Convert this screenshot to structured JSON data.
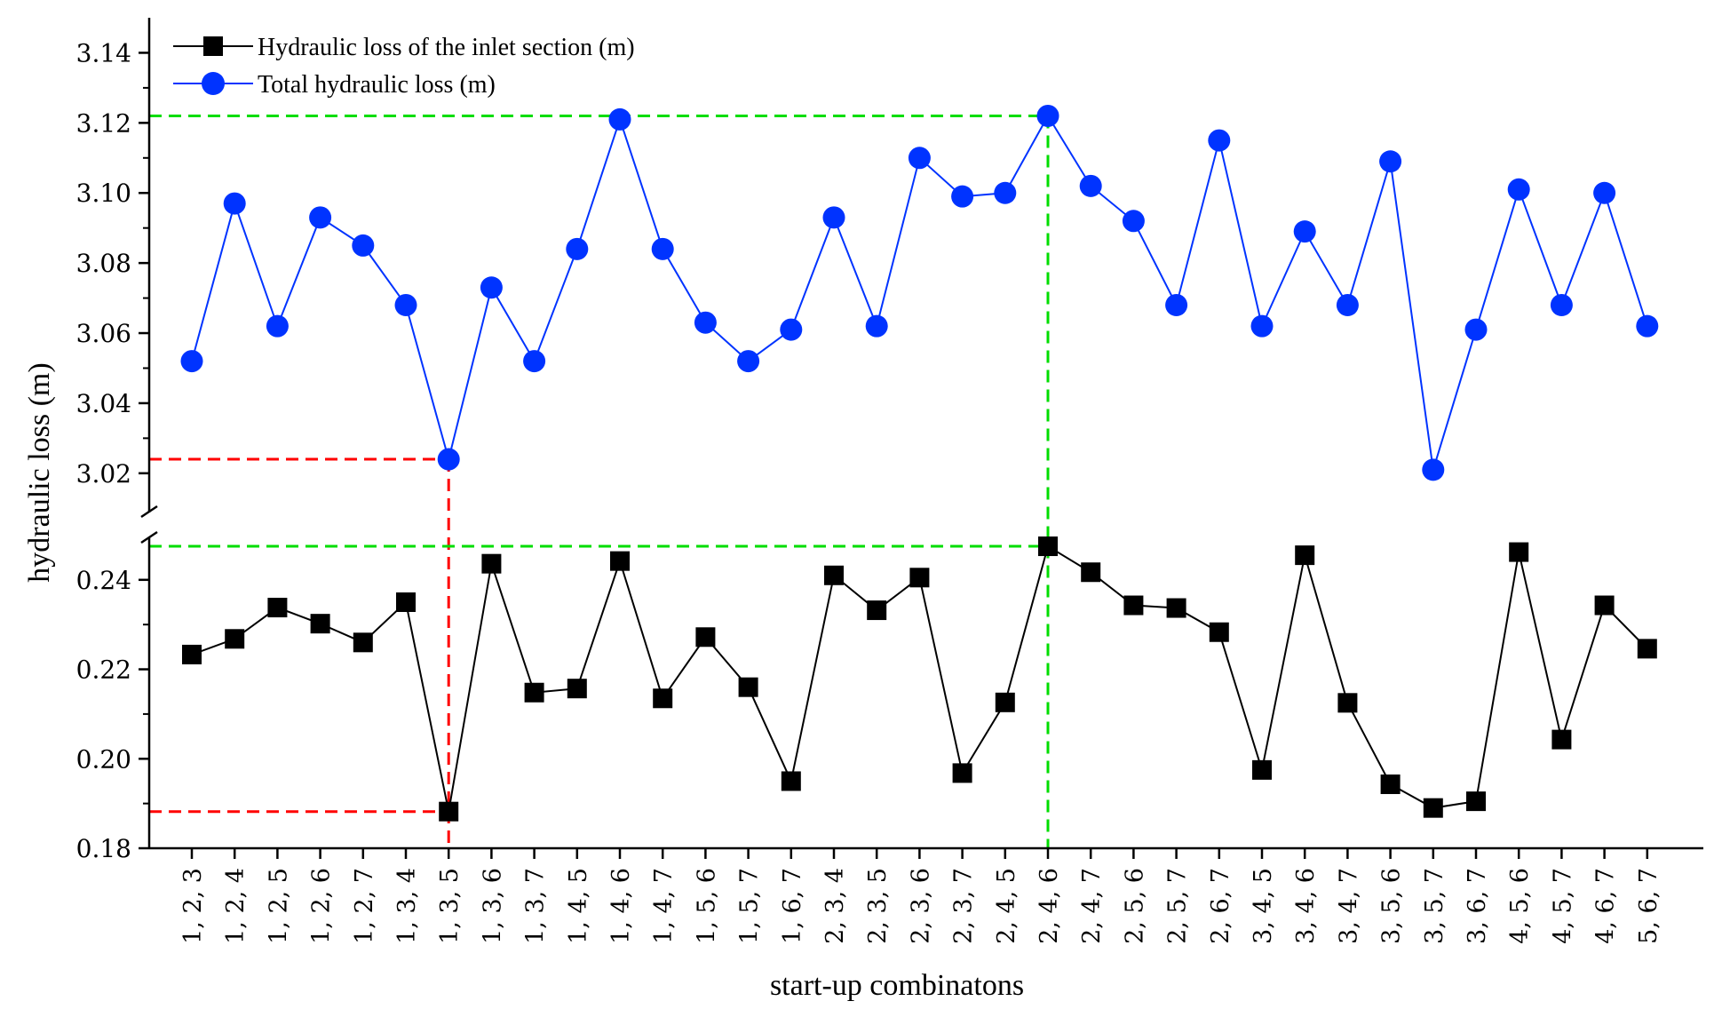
{
  "chart_data": {
    "type": "line",
    "title": "",
    "xlabel": "start-up combinatons",
    "ylabel": "hydraulic loss (m)",
    "categories": [
      "1, 2, 3",
      "1, 2, 4",
      "1, 2, 5",
      "1, 2, 6",
      "1, 2, 7",
      "1, 3, 4",
      "1, 3, 5",
      "1, 3, 6",
      "1, 3, 7",
      "1, 4, 5",
      "1, 4, 6",
      "1, 4, 7",
      "1, 5, 6",
      "1, 5, 7",
      "1, 6, 7",
      "2, 3, 4",
      "2, 3, 5",
      "2, 3, 6",
      "2, 3, 7",
      "2, 4, 5",
      "2, 4, 6",
      "2, 4, 7",
      "2, 5, 6",
      "2, 5, 7",
      "2, 6, 7",
      "3, 4, 5",
      "3, 4, 6",
      "3, 4, 7",
      "3, 5, 6",
      "3, 5, 7",
      "3, 6, 7",
      "4, 5, 6",
      "4, 5, 7",
      "4, 6, 7",
      "5, 6, 7"
    ],
    "series": [
      {
        "name": "Hydraulic loss of the inlet section (m)",
        "color": "#000000",
        "marker": "square",
        "values": [
          0.2233,
          0.2268,
          0.2338,
          0.2302,
          0.226,
          0.235,
          0.1882,
          0.2436,
          0.2148,
          0.2157,
          0.2442,
          0.2135,
          0.2272,
          0.216,
          0.195,
          0.241,
          0.2332,
          0.2405,
          0.1968,
          0.2126,
          0.2475,
          0.2417,
          0.2343,
          0.2337,
          0.2283,
          0.1975,
          0.2455,
          0.2125,
          0.1943,
          0.189,
          0.1905,
          0.2462,
          0.2043,
          0.2343,
          0.2246
        ]
      },
      {
        "name": "Total hydraulic loss (m)",
        "color": "#0033ff",
        "marker": "circle",
        "values": [
          3.052,
          3.097,
          3.062,
          3.093,
          3.085,
          3.068,
          3.024,
          3.073,
          3.052,
          3.084,
          3.121,
          3.084,
          3.063,
          3.052,
          3.061,
          3.093,
          3.062,
          3.11,
          3.099,
          3.1,
          3.122,
          3.102,
          3.092,
          3.068,
          3.115,
          3.062,
          3.089,
          3.068,
          3.109,
          3.021,
          3.061,
          3.101,
          3.068,
          3.1,
          3.062
        ]
      }
    ],
    "axes": [
      {
        "segment": "lower",
        "ylim": [
          0.18,
          0.2485
        ],
        "ticks": [
          "0.18",
          "0.20",
          "0.22",
          "0.24"
        ]
      },
      {
        "segment": "upper",
        "ylim": [
          3.005,
          3.15
        ],
        "ticks": [
          "3.02",
          "3.04",
          "3.06",
          "3.08",
          "3.10",
          "3.12",
          "3.14"
        ]
      }
    ],
    "reference_lines": [
      {
        "color": "#ff0000",
        "category": "1, 3, 5",
        "inlet_value": 0.1882,
        "total_value": 3.024
      },
      {
        "color": "#00dd00",
        "category": "2, 4, 6",
        "inlet_value": 0.2475,
        "total_value": 3.122
      }
    ],
    "legend_position": "top-left",
    "grid": false
  }
}
